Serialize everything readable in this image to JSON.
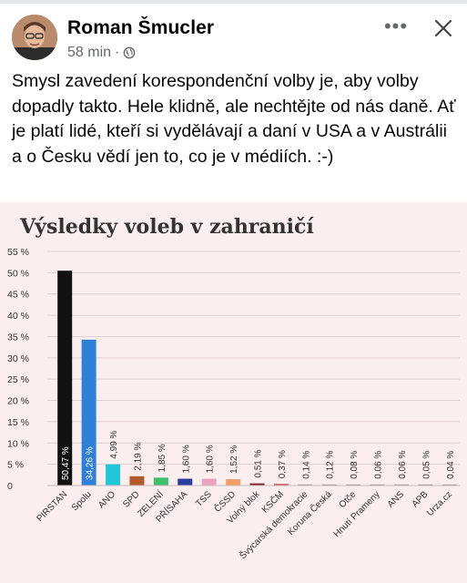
{
  "post": {
    "author": "Roman Šmucler",
    "time": "58 min",
    "separator": "·",
    "privacy_icon": "globe-icon",
    "more_icon": "more-icon",
    "more_label": "•••",
    "close_icon": "close-icon",
    "text": "Smysl zavedení korespondenční volby je, aby volby dopadly takto. Hele klidně, ale nechtějte od nás daně. Ať je platí lidé, kteří si vydělávají a daní v USA a v Austrálii a o Česku vědí jen to, co je v médiích. :-)"
  },
  "chart_data": {
    "type": "bar",
    "title": "Výsledky voleb v zahraničí",
    "categories": [
      "PIRSTAN",
      "Spolu",
      "ANO",
      "SPD",
      "ZELENÍ",
      "PŘÍSAHA",
      "TSS",
      "ČSSD",
      "Volný blok",
      "KSČM",
      "Švýcarská demokracie",
      "Koruna Česká",
      "Otče",
      "Hnutí Prameny",
      "ANS",
      "APB",
      "Urza.cz"
    ],
    "values": [
      50.47,
      34.26,
      4.99,
      2.19,
      1.85,
      1.6,
      1.6,
      1.52,
      0.51,
      0.37,
      0.14,
      0.12,
      0.08,
      0.06,
      0.06,
      0.05,
      0.04
    ],
    "value_labels": [
      "50,47 %",
      "34,26 %",
      "4,99 %",
      "2,19 %",
      "1,85 %",
      "1,60 %",
      "1,60 %",
      "1,52 %",
      "0,51 %",
      "0,37 %",
      "0,14 %",
      "0,12 %",
      "0,08 %",
      "0,06 %",
      "0,06 %",
      "0,05 %",
      "0,04 %"
    ],
    "colors": [
      "#111111",
      "#2f7fd6",
      "#23c6d8",
      "#b15a2b",
      "#3fc16b",
      "#2a3c9e",
      "#e8a3bf",
      "#f0a06a",
      "#7a2430",
      "#c83a4a",
      "#999999",
      "#999999",
      "#999999",
      "#999999",
      "#999999",
      "#999999",
      "#999999"
    ],
    "yticks": [
      0,
      5,
      10,
      15,
      20,
      25,
      30,
      35,
      40,
      45,
      50,
      55
    ],
    "ytick_labels": [
      "0",
      "5 %",
      "10 %",
      "15 %",
      "20 %",
      "25 %",
      "30 %",
      "35 %",
      "40 %",
      "45 %",
      "50 %",
      "55 %"
    ],
    "ylim": [
      0,
      55
    ],
    "grid": true
  }
}
